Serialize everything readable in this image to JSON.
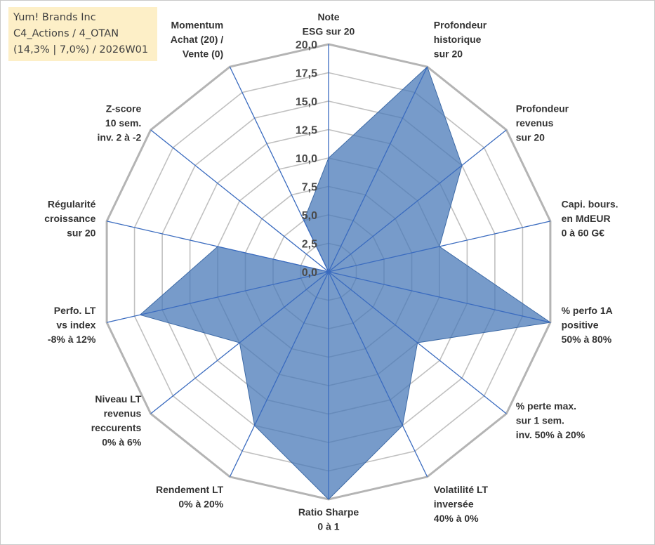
{
  "info": {
    "line1": "Yum! Brands Inc",
    "line2": "C4_Actions / 4_OTAN",
    "line3": "(14,3% | 7,0%) / 2026W01"
  },
  "colors": {
    "fill": "#4a7ab8",
    "spoke": "#3a6bbf",
    "ring": "#c0c0c0",
    "outer_ring": "#b4b4b4"
  },
  "chart_data": {
    "type": "radar",
    "title": "",
    "rmin": 0,
    "rmax": 20,
    "tick_step": 2.5,
    "tick_labels": [
      "0,0",
      "2,5",
      "5,0",
      "7,5",
      "10,0",
      "12,5",
      "15,0",
      "17,5",
      "20,0"
    ],
    "grid": true,
    "axes": [
      {
        "label": [
          "Note",
          "ESG sur 20"
        ],
        "value": 10
      },
      {
        "label": [
          "Profondeur",
          "historique",
          "sur 20"
        ],
        "value": 20
      },
      {
        "label": [
          "Profondeur",
          "revenus",
          "sur 20"
        ],
        "value": 15
      },
      {
        "label": [
          "Capi. bours.",
          "en MdEUR",
          "0 à 60 G€"
        ],
        "value": 10
      },
      {
        "label": [
          "% perfo 1A",
          "positive",
          "50% à 80%"
        ],
        "value": 20
      },
      {
        "label": [
          "% perte max.",
          "sur 1 sem.",
          "inv. 50% à 20%"
        ],
        "value": 10
      },
      {
        "label": [
          "Volatilité LT",
          "inversée",
          "40% à 0%"
        ],
        "value": 15
      },
      {
        "label": [
          "Ratio Sharpe",
          "0 à 1"
        ],
        "value": 20
      },
      {
        "label": [
          "Rendement LT",
          "0% à 20%"
        ],
        "value": 15
      },
      {
        "label": [
          "Niveau LT",
          "revenus",
          "reccurents",
          "0% à 6%"
        ],
        "value": 10
      },
      {
        "label": [
          "Perfo. LT",
          "vs index",
          "-8% à 12%"
        ],
        "value": 17
      },
      {
        "label": [
          "Régularité",
          "croissance",
          "sur 20"
        ],
        "value": 10
      },
      {
        "label": [
          "Z-score",
          "10 sem.",
          "inv. 2 à -2"
        ],
        "value": 0
      },
      {
        "label": [
          "Momentum",
          "Achat (20) /",
          "Vente (0)"
        ],
        "value": 5
      }
    ]
  }
}
